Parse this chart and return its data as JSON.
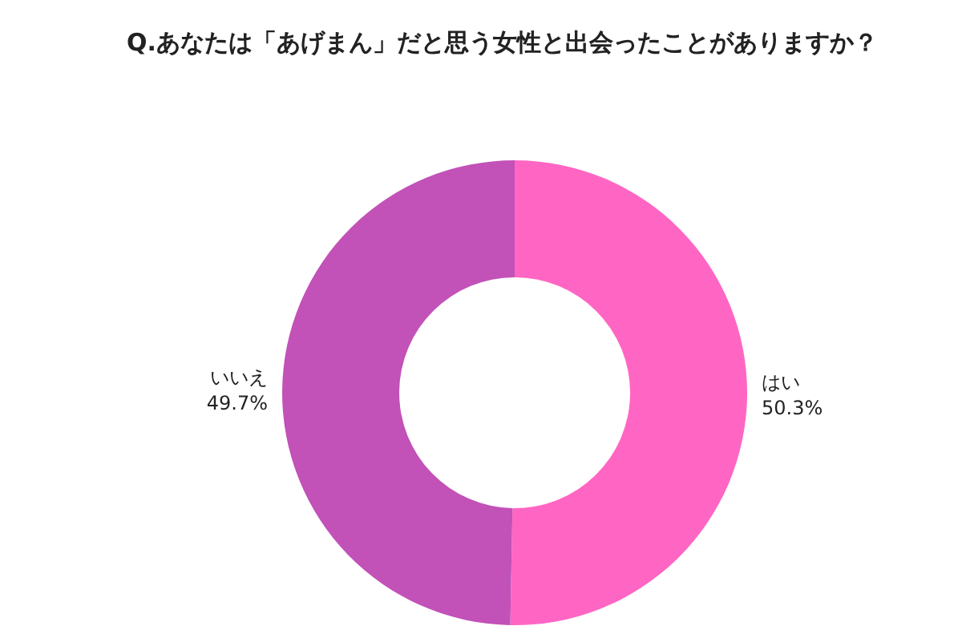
{
  "chart_data": {
    "type": "donut",
    "title": "Q.あなたは「あげまん」だと思う女性と出会ったことがありますか？",
    "categories": [
      "はい",
      "いいえ"
    ],
    "values": [
      50.3,
      49.7
    ],
    "colors": [
      "#ff66c4",
      "#c251b8"
    ],
    "value_labels": [
      "50.3%",
      "49.7%"
    ]
  }
}
